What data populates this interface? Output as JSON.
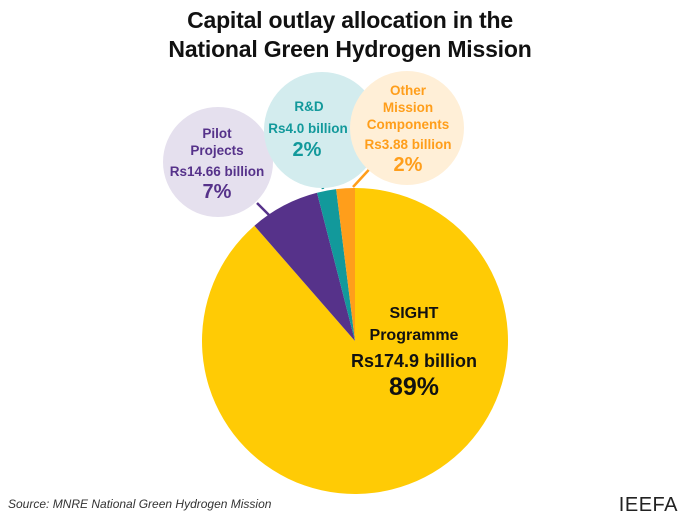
{
  "chart_data": {
    "type": "pie",
    "title": [
      "Capital outlay allocation in the",
      "National Green Hydrogen Mission"
    ],
    "unit": "Rs billion",
    "slices": [
      {
        "name": "SIGHT Programme",
        "label_lines": [
          "SIGHT",
          "Programme"
        ],
        "value_text": "Rs174.9 billion",
        "value": 174.9,
        "percent_text": "89%",
        "color": "#FFCB05",
        "bubble_color": null,
        "text_color": "#111111"
      },
      {
        "name": "Pilot Projects",
        "label_lines": [
          "Pilot",
          "Projects"
        ],
        "value_text": "Rs14.66 billion",
        "value": 14.66,
        "percent_text": "7%",
        "color": "#56328A",
        "bubble_color": "#E5E0EE",
        "text_color": "#56328A"
      },
      {
        "name": "R&D",
        "label_lines": [
          "R&D"
        ],
        "value_text": "Rs4.0 billion",
        "value": 4.0,
        "percent_text": "2%",
        "color": "#12999B",
        "bubble_color": "#D3ECEE",
        "text_color": "#12999B"
      },
      {
        "name": "Other Mission Components",
        "label_lines": [
          "Other",
          "Mission",
          "Components"
        ],
        "value_text": "Rs3.88 billion",
        "value": 3.88,
        "percent_text": "2%",
        "color": "#FF9E1B",
        "bubble_color": "#FFEFD7",
        "text_color": "#FF9E1B"
      }
    ]
  },
  "footer": {
    "source": "Source: MNRE National Green Hydrogen Mission",
    "brand": "IEEFA"
  }
}
